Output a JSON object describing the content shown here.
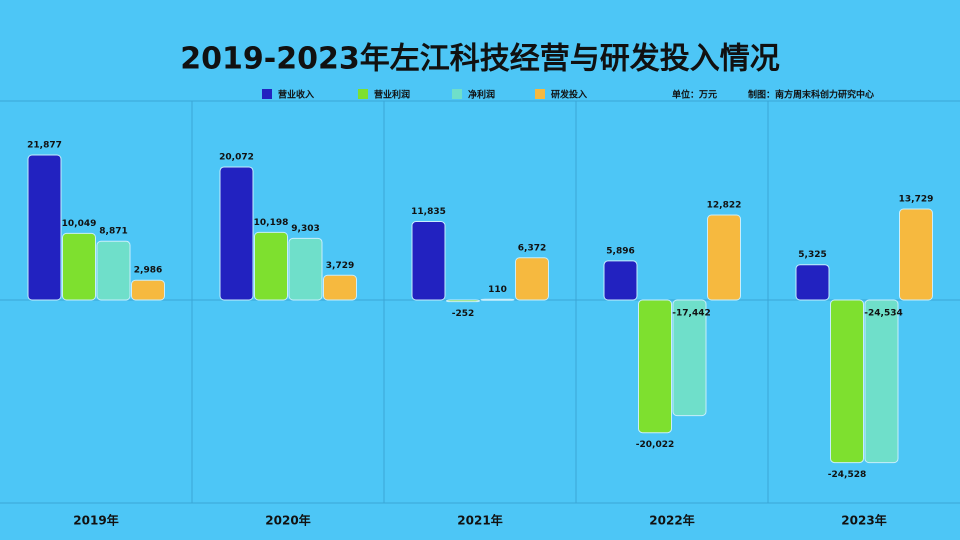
{
  "chart_data": {
    "type": "bar",
    "title": "2019-2023年左江科技经营与研发投入情况",
    "notes": [
      "单位：万元",
      "制图：南方周末科创力研究中心"
    ],
    "categories": [
      "2019年",
      "2020年",
      "2021年",
      "2022年",
      "2023年"
    ],
    "series": [
      {
        "name": "营业收入",
        "color": "#2222c0",
        "values": [
          21877,
          20072,
          11835,
          5896,
          5325
        ],
        "value_labels": [
          "21,877",
          "20,072",
          "11,835",
          "5,896",
          "5,325"
        ]
      },
      {
        "name": "营业利润",
        "color": "#7ee02f",
        "values": [
          10049,
          10198,
          -252,
          -20022,
          -24528
        ],
        "value_labels": [
          "10,049",
          "10,198",
          "-252",
          "-20,022",
          "-24,528"
        ]
      },
      {
        "name": "净利润",
        "color": "#6fdfca",
        "values": [
          8871,
          9303,
          110,
          -17442,
          -24534
        ],
        "value_labels": [
          "8,871",
          "9,303",
          "110",
          "-17,442",
          "-24,534"
        ]
      },
      {
        "name": "研发投入",
        "color": "#f6b93f",
        "values": [
          2986,
          3729,
          6372,
          12822,
          13729
        ],
        "value_labels": [
          "2,986",
          "3,729",
          "6,372",
          "12,822",
          "13,729"
        ]
      }
    ]
  }
}
